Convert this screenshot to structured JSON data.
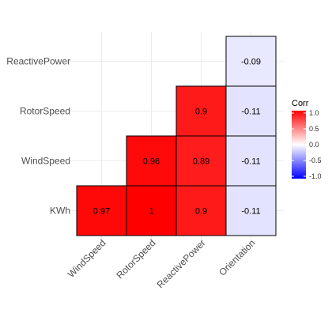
{
  "chart_data": {
    "type": "heatmap",
    "title": "",
    "xlabel": "",
    "ylabel": "",
    "x_categories": [
      "WindSpeed",
      "RotorSpeed",
      "ReactivePower",
      "Orientation"
    ],
    "y_categories": [
      "KWh",
      "WindSpeed",
      "RotorSpeed",
      "ReactivePower"
    ],
    "cells": [
      {
        "x": "WindSpeed",
        "y": "KWh",
        "value": 0.97,
        "label": "0.97"
      },
      {
        "x": "RotorSpeed",
        "y": "KWh",
        "value": 1.0,
        "label": "1"
      },
      {
        "x": "ReactivePower",
        "y": "KWh",
        "value": 0.9,
        "label": "0.9"
      },
      {
        "x": "Orientation",
        "y": "KWh",
        "value": -0.11,
        "label": "-0.11"
      },
      {
        "x": "RotorSpeed",
        "y": "WindSpeed",
        "value": 0.96,
        "label": "0.96"
      },
      {
        "x": "ReactivePower",
        "y": "WindSpeed",
        "value": 0.89,
        "label": "0.89"
      },
      {
        "x": "Orientation",
        "y": "WindSpeed",
        "value": -0.11,
        "label": "-0.11"
      },
      {
        "x": "ReactivePower",
        "y": "RotorSpeed",
        "value": 0.9,
        "label": "0.9"
      },
      {
        "x": "Orientation",
        "y": "RotorSpeed",
        "value": -0.11,
        "label": "-0.11"
      },
      {
        "x": "Orientation",
        "y": "ReactivePower",
        "value": -0.09,
        "label": "-0.09"
      }
    ],
    "color_scale": {
      "low": "#0000ff",
      "mid": "#ffffff",
      "high": "#ff0000",
      "limits": [
        -1,
        1
      ]
    },
    "legend": {
      "title": "Corr",
      "ticks": [
        1.0,
        0.5,
        0.0,
        -0.5,
        -1.0
      ],
      "tick_labels": [
        "1.0",
        "0.5",
        "0.0",
        "-0.5",
        "-1.0"
      ],
      "placement": "right"
    },
    "grid": true
  }
}
